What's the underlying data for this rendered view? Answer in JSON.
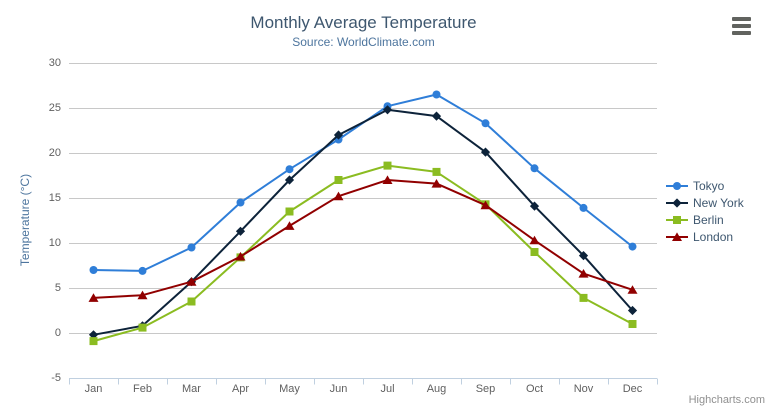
{
  "chart_data": {
    "type": "line",
    "title": "Monthly Average Temperature",
    "subtitle": "Source: WorldClimate.com",
    "ylabel": "Temperature (°C)",
    "xlabel": "",
    "categories": [
      "Jan",
      "Feb",
      "Mar",
      "Apr",
      "May",
      "Jun",
      "Jul",
      "Aug",
      "Sep",
      "Oct",
      "Nov",
      "Dec"
    ],
    "ylim": [
      -5,
      30
    ],
    "yticks": [
      -5,
      0,
      5,
      10,
      15,
      20,
      25,
      30
    ],
    "grid": true,
    "legend_position": "right",
    "series": [
      {
        "name": "Tokyo",
        "color": "#2f7ed8",
        "marker": "circle",
        "values": [
          7.0,
          6.9,
          9.5,
          14.5,
          18.2,
          21.5,
          25.2,
          26.5,
          23.3,
          18.3,
          13.9,
          9.6
        ]
      },
      {
        "name": "New York",
        "color": "#0d233a",
        "marker": "diamond",
        "values": [
          -0.2,
          0.8,
          5.7,
          11.3,
          17.0,
          22.0,
          24.8,
          24.1,
          20.1,
          14.1,
          8.6,
          2.5
        ]
      },
      {
        "name": "Berlin",
        "color": "#8bbc21",
        "marker": "square",
        "values": [
          -0.9,
          0.6,
          3.5,
          8.4,
          13.5,
          17.0,
          18.6,
          17.9,
          14.3,
          9.0,
          3.9,
          1.0
        ]
      },
      {
        "name": "London",
        "color": "#910000",
        "marker": "triangle",
        "values": [
          3.9,
          4.2,
          5.7,
          8.5,
          11.9,
          15.2,
          17.0,
          16.6,
          14.2,
          10.3,
          6.6,
          4.8
        ]
      }
    ]
  },
  "styles": {
    "grid_color": "#c8c8c8",
    "axis_line_color": "#C0D0E0",
    "tick_label_color": "#606060",
    "title_color": "#3E576F",
    "subtitle_color": "#4d759e",
    "legend_text_color": "#3E576F"
  },
  "export_menu": {
    "icon": "hamburger-menu-icon"
  },
  "credits": {
    "label": "Highcharts.com"
  }
}
